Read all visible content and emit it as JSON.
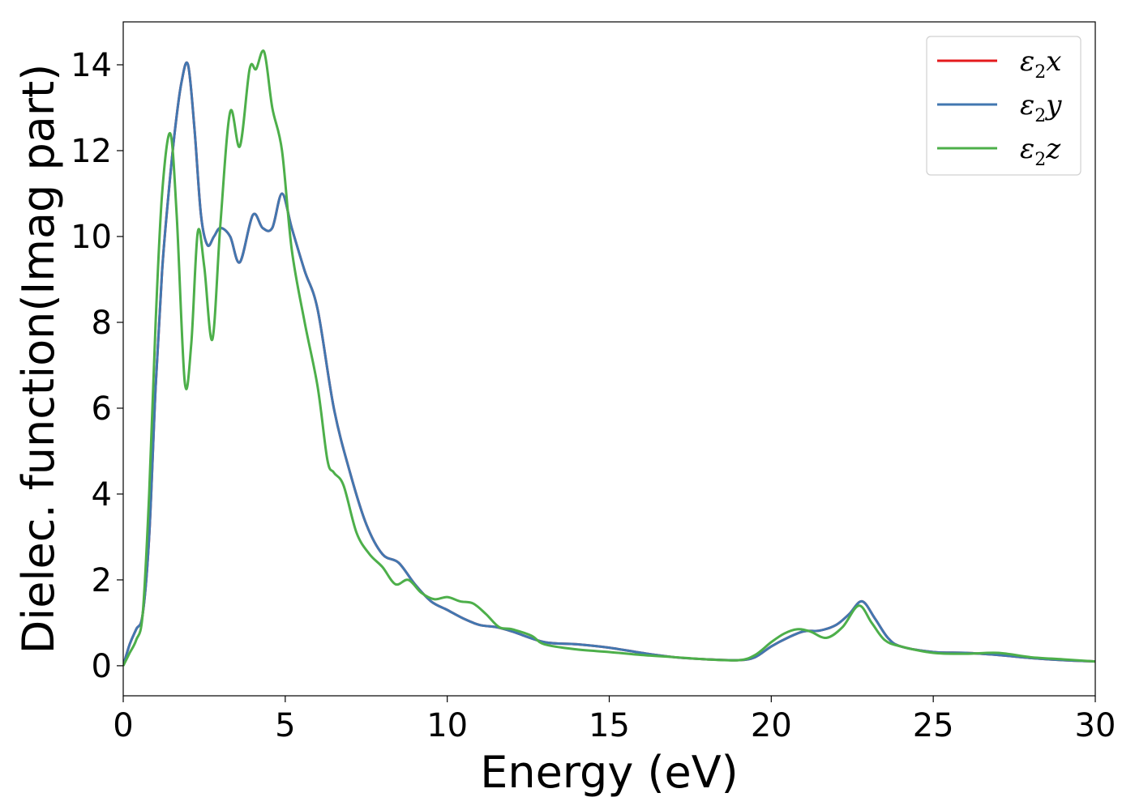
{
  "chart_data": {
    "type": "line",
    "title": "",
    "xlabel": "Energy (eV)",
    "ylabel": "Dielec. function(Imag part)",
    "xlim": [
      0,
      30
    ],
    "ylim": [
      -0.7,
      15
    ],
    "xticks": [
      0,
      5,
      10,
      15,
      20,
      25,
      30
    ],
    "xtick_labels": [
      "0",
      "5",
      "10",
      "15",
      "20",
      "25",
      "30"
    ],
    "yticks": [
      0,
      2,
      4,
      6,
      8,
      10,
      12,
      14
    ],
    "ytick_labels": [
      "0",
      "2",
      "4",
      "6",
      "8",
      "10",
      "12",
      "14"
    ],
    "grid": false,
    "legend_position": "top-right",
    "series": [
      {
        "name": "ε2x",
        "symbol": "ε",
        "sub": "2",
        "axis": "x",
        "color": "#e41a1c",
        "x": [
          0,
          0.2,
          0.4,
          0.6,
          0.8,
          1.0,
          1.2,
          1.4,
          1.6,
          1.8,
          2.0,
          2.2,
          2.4,
          2.6,
          2.8,
          3.0,
          3.3,
          3.6,
          4.0,
          4.3,
          4.6,
          4.9,
          5.2,
          5.6,
          6.0,
          6.5,
          7.0,
          7.5,
          8.0,
          8.5,
          9.0,
          9.5,
          10.0,
          10.5,
          11.0,
          11.5,
          12.0,
          13.0,
          14.0,
          15.0,
          16.0,
          17.0,
          18.0,
          19.0,
          19.5,
          20.0,
          20.5,
          21.0,
          21.5,
          22.0,
          22.4,
          22.8,
          23.2,
          23.6,
          24.0,
          25.0,
          26.0,
          27.0,
          28.0,
          29.0,
          30.0
        ],
        "values": [
          0.0,
          0.5,
          0.85,
          1.2,
          3.0,
          6.5,
          9.2,
          11.0,
          12.5,
          13.6,
          14.0,
          12.5,
          10.5,
          9.8,
          10.0,
          10.2,
          10.0,
          9.4,
          10.5,
          10.2,
          10.2,
          11.0,
          10.2,
          9.2,
          8.3,
          6.0,
          4.5,
          3.3,
          2.6,
          2.4,
          1.9,
          1.5,
          1.3,
          1.1,
          0.95,
          0.9,
          0.8,
          0.55,
          0.5,
          0.42,
          0.3,
          0.2,
          0.15,
          0.13,
          0.2,
          0.45,
          0.65,
          0.8,
          0.82,
          0.95,
          1.2,
          1.5,
          1.1,
          0.65,
          0.45,
          0.32,
          0.3,
          0.25,
          0.18,
          0.13,
          0.1
        ]
      },
      {
        "name": "ε2y",
        "symbol": "ε",
        "sub": "2",
        "axis": "y",
        "color": "#4277b0",
        "x": [
          0,
          0.2,
          0.4,
          0.6,
          0.8,
          1.0,
          1.2,
          1.4,
          1.6,
          1.8,
          2.0,
          2.2,
          2.4,
          2.6,
          2.8,
          3.0,
          3.3,
          3.6,
          4.0,
          4.3,
          4.6,
          4.9,
          5.2,
          5.6,
          6.0,
          6.5,
          7.0,
          7.5,
          8.0,
          8.5,
          9.0,
          9.5,
          10.0,
          10.5,
          11.0,
          11.5,
          12.0,
          13.0,
          14.0,
          15.0,
          16.0,
          17.0,
          18.0,
          19.0,
          19.5,
          20.0,
          20.5,
          21.0,
          21.5,
          22.0,
          22.4,
          22.8,
          23.2,
          23.6,
          24.0,
          25.0,
          26.0,
          27.0,
          28.0,
          29.0,
          30.0
        ],
        "values": [
          0.0,
          0.5,
          0.85,
          1.2,
          3.0,
          6.5,
          9.2,
          11.0,
          12.5,
          13.6,
          14.0,
          12.5,
          10.5,
          9.8,
          10.0,
          10.2,
          10.0,
          9.4,
          10.5,
          10.2,
          10.2,
          11.0,
          10.2,
          9.2,
          8.3,
          6.0,
          4.5,
          3.3,
          2.6,
          2.4,
          1.9,
          1.5,
          1.3,
          1.1,
          0.95,
          0.9,
          0.8,
          0.55,
          0.5,
          0.42,
          0.3,
          0.2,
          0.15,
          0.13,
          0.2,
          0.45,
          0.65,
          0.8,
          0.82,
          0.95,
          1.2,
          1.5,
          1.1,
          0.65,
          0.45,
          0.32,
          0.3,
          0.25,
          0.18,
          0.13,
          0.1
        ]
      },
      {
        "name": "ε2z",
        "symbol": "ε",
        "sub": "2",
        "axis": "z",
        "color": "#4daf4a",
        "x": [
          0,
          0.2,
          0.4,
          0.6,
          0.8,
          1.0,
          1.2,
          1.45,
          1.65,
          1.9,
          2.1,
          2.3,
          2.5,
          2.75,
          3.0,
          3.3,
          3.6,
          3.9,
          4.1,
          4.35,
          4.6,
          4.9,
          5.2,
          5.6,
          6.0,
          6.3,
          6.5,
          6.8,
          7.2,
          7.6,
          8.0,
          8.4,
          8.8,
          9.2,
          9.6,
          10.0,
          10.4,
          10.8,
          11.2,
          11.6,
          12.0,
          12.6,
          13.0,
          14.0,
          15.0,
          16.0,
          17.0,
          18.0,
          19.0,
          19.5,
          20.0,
          20.4,
          20.8,
          21.2,
          21.7,
          22.2,
          22.7,
          23.1,
          23.5,
          24.0,
          25.0,
          26.0,
          27.0,
          28.0,
          29.0,
          30.0
        ],
        "values": [
          0.0,
          0.3,
          0.6,
          1.2,
          4.0,
          8.0,
          11.0,
          12.4,
          10.5,
          6.6,
          7.5,
          10.1,
          9.3,
          7.6,
          10.3,
          12.9,
          12.1,
          13.9,
          13.9,
          14.3,
          13.0,
          12.0,
          9.7,
          8.0,
          6.5,
          4.8,
          4.5,
          4.2,
          3.1,
          2.6,
          2.3,
          1.9,
          2.0,
          1.7,
          1.55,
          1.6,
          1.5,
          1.45,
          1.2,
          0.9,
          0.85,
          0.7,
          0.5,
          0.38,
          0.32,
          0.25,
          0.2,
          0.15,
          0.13,
          0.25,
          0.55,
          0.75,
          0.85,
          0.8,
          0.65,
          0.9,
          1.4,
          1.0,
          0.6,
          0.45,
          0.3,
          0.28,
          0.3,
          0.2,
          0.15,
          0.1
        ]
      }
    ]
  }
}
